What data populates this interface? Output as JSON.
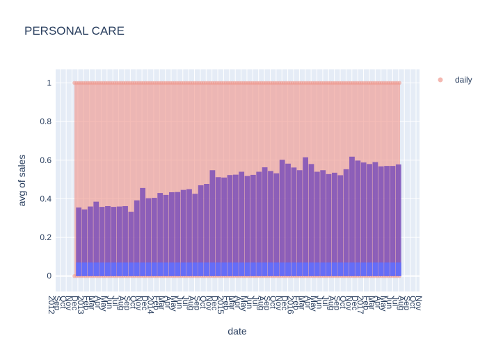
{
  "chart_data": {
    "type": "bar",
    "title": "PERSONAL CARE",
    "xlabel": "date",
    "ylabel": "avg of sales",
    "ylim": [
      -0.08,
      1.07
    ],
    "yticks": [
      0,
      0.2,
      0.4,
      0.6,
      0.8,
      1
    ],
    "ytick_labels": [
      "0",
      "0.2",
      "0.4",
      "0.6",
      "0.8",
      "1"
    ],
    "grid": true,
    "legend_position": "top-right",
    "series": [
      {
        "name": "daily",
        "type": "scatter",
        "color": "#ef9a90",
        "y_min": 0,
        "y_max": 1
      }
    ],
    "bar_series": {
      "color": "#636efa",
      "monthly_values": [
        0.355,
        0.345,
        0.36,
        0.385,
        0.358,
        0.362,
        0.358,
        0.36,
        0.362,
        0.333,
        0.392,
        0.456,
        0.403,
        0.405,
        0.43,
        0.42,
        0.434,
        0.435,
        0.446,
        0.45,
        0.426,
        0.47,
        0.477,
        0.548,
        0.512,
        0.51,
        0.523,
        0.525,
        0.54,
        0.518,
        0.524,
        0.54,
        0.563,
        0.544,
        0.532,
        0.602,
        0.582,
        0.562,
        0.548,
        0.615,
        0.58,
        0.54,
        0.548,
        0.528,
        0.535,
        0.522,
        0.553,
        0.618,
        0.598,
        0.588,
        0.58,
        0.59,
        0.568,
        0.57,
        0.57,
        0.578
      ],
      "base_values_level": 0.07
    },
    "x_tick_labels": [
      "2012",
      "Sep",
      "Oct",
      "Nov",
      "Dec",
      "2013",
      "Feb",
      "Mar",
      "Apr",
      "May",
      "Jun",
      "Jul",
      "Aug",
      "Sep",
      "Oct",
      "Nov",
      "Dec",
      "2014",
      "Feb",
      "Mar",
      "Apr",
      "May",
      "Jun",
      "Jul",
      "Aug",
      "Sep",
      "Oct",
      "Nov",
      "Dec",
      "2015",
      "Feb",
      "Mar",
      "Apr",
      "May",
      "Jun",
      "Jul",
      "Aug",
      "Sep",
      "Oct",
      "Nov",
      "Dec",
      "2016",
      "Feb",
      "Mar",
      "Apr",
      "May",
      "Jun",
      "Jul",
      "Aug",
      "Sep",
      "Oct",
      "Nov",
      "Dec",
      "2017",
      "Feb",
      "Mar",
      "Apr",
      "May",
      "Jun",
      "Jul",
      "Aug",
      "Sep",
      "Oct",
      "Nov"
    ]
  }
}
